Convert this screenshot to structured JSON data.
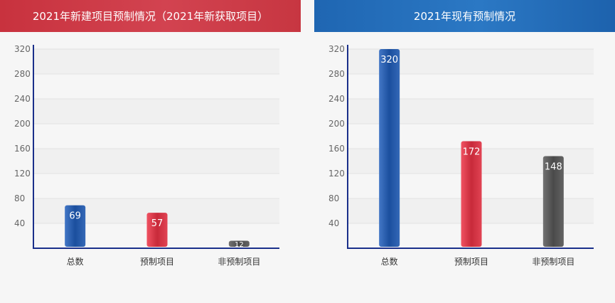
{
  "charts": [
    {
      "id": "left",
      "title": "2021年新建项目预制情况（2021年新获取项目）",
      "colors": [
        "#1b4f9e",
        "#c82a3a",
        "#4a4a4a"
      ],
      "chart_data": {
        "type": "bar",
        "categories": [
          "总数",
          "预制项目",
          "非预制项目"
        ],
        "values": [
          69,
          57,
          12
        ],
        "yticks": [
          40,
          80,
          120,
          160,
          200,
          240,
          280,
          320
        ],
        "ylim": [
          0,
          320
        ],
        "grid": true
      }
    },
    {
      "id": "right",
      "title": "2021年现有预制情况",
      "colors": [
        "#1b4f9e",
        "#c82a3a",
        "#4a4a4a"
      ],
      "chart_data": {
        "type": "bar",
        "categories": [
          "总数",
          "预制项目",
          "非预制项目"
        ],
        "values": [
          320,
          172,
          148
        ],
        "yticks": [
          40,
          80,
          120,
          160,
          200,
          240,
          280,
          320
        ],
        "ylim": [
          0,
          320
        ],
        "grid": true
      }
    }
  ]
}
